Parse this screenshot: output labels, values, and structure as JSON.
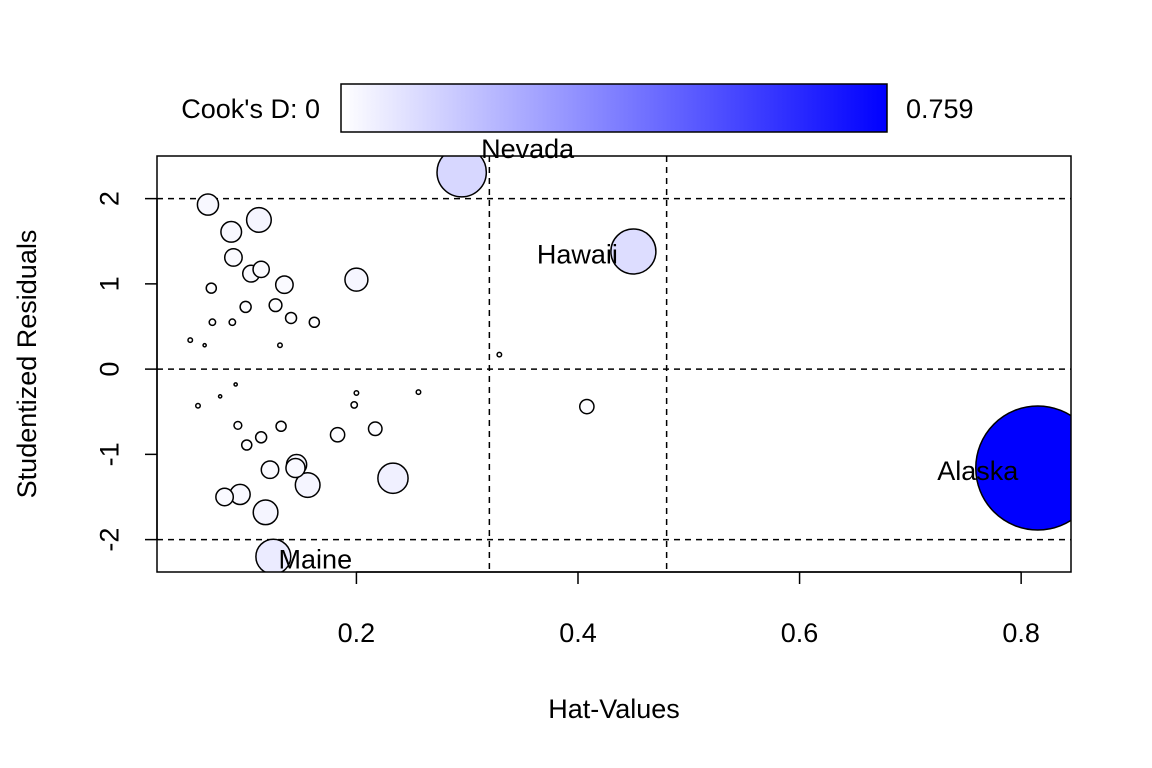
{
  "chart_data": {
    "type": "scatter",
    "title": "",
    "xlabel": "Hat-Values",
    "ylabel": "Studentized Residuals",
    "xlim": [
      0.02,
      0.845
    ],
    "ylim": [
      -2.38,
      2.5
    ],
    "x_ticks": [
      0.2,
      0.4,
      0.6,
      0.8
    ],
    "x_tick_labels": [
      "0.2",
      "0.4",
      "0.6",
      "0.8"
    ],
    "y_ticks": [
      -2,
      -1,
      0,
      1,
      2
    ],
    "y_tick_labels": [
      "-2",
      "-1",
      "0",
      "1",
      "2"
    ],
    "grid": false,
    "reference_lines": {
      "horizontal": [
        -2,
        0,
        2
      ],
      "vertical": [
        0.32,
        0.48
      ],
      "style": "dashed"
    },
    "legend": {
      "label": "Cook's D: 0",
      "max_label": "0.759",
      "min": 0,
      "max": 0.759,
      "color_low": "#ffffff",
      "color_high": "#0000ff",
      "placement": "top"
    },
    "points": [
      {
        "x": 0.066,
        "y": 1.93,
        "cooksd": 0.022
      },
      {
        "x": 0.112,
        "y": 1.75,
        "cooksd": 0.03
      },
      {
        "x": 0.087,
        "y": 1.61,
        "cooksd": 0.021
      },
      {
        "x": 0.089,
        "y": 1.31,
        "cooksd": 0.015
      },
      {
        "x": 0.105,
        "y": 1.12,
        "cooksd": 0.014
      },
      {
        "x": 0.114,
        "y": 1.17,
        "cooksd": 0.013
      },
      {
        "x": 0.069,
        "y": 0.95,
        "cooksd": 0.005
      },
      {
        "x": 0.135,
        "y": 0.99,
        "cooksd": 0.015
      },
      {
        "x": 0.2,
        "y": 1.05,
        "cooksd": 0.026
      },
      {
        "x": 0.1,
        "y": 0.73,
        "cooksd": 0.006
      },
      {
        "x": 0.127,
        "y": 0.75,
        "cooksd": 0.008
      },
      {
        "x": 0.141,
        "y": 0.6,
        "cooksd": 0.006
      },
      {
        "x": 0.162,
        "y": 0.55,
        "cooksd": 0.005
      },
      {
        "x": 0.07,
        "y": 0.55,
        "cooksd": 0.002
      },
      {
        "x": 0.088,
        "y": 0.55,
        "cooksd": 0.002
      },
      {
        "x": 0.05,
        "y": 0.34,
        "cooksd": 0.001
      },
      {
        "x": 0.063,
        "y": 0.28,
        "cooksd": 0.0005
      },
      {
        "x": 0.131,
        "y": 0.28,
        "cooksd": 0.001
      },
      {
        "x": 0.329,
        "y": 0.17,
        "cooksd": 0.001
      },
      {
        "x": 0.057,
        "y": -0.43,
        "cooksd": 0.001
      },
      {
        "x": 0.077,
        "y": -0.32,
        "cooksd": 0.0005
      },
      {
        "x": 0.091,
        "y": -0.18,
        "cooksd": 0.0005
      },
      {
        "x": 0.2,
        "y": -0.28,
        "cooksd": 0.001
      },
      {
        "x": 0.198,
        "y": -0.42,
        "cooksd": 0.002
      },
      {
        "x": 0.256,
        "y": -0.27,
        "cooksd": 0.001
      },
      {
        "x": 0.408,
        "y": -0.44,
        "cooksd": 0.01
      },
      {
        "x": 0.093,
        "y": -0.66,
        "cooksd": 0.003
      },
      {
        "x": 0.114,
        "y": -0.8,
        "cooksd": 0.006
      },
      {
        "x": 0.132,
        "y": -0.67,
        "cooksd": 0.005
      },
      {
        "x": 0.101,
        "y": -0.89,
        "cooksd": 0.005
      },
      {
        "x": 0.183,
        "y": -0.77,
        "cooksd": 0.01
      },
      {
        "x": 0.217,
        "y": -0.7,
        "cooksd": 0.009
      },
      {
        "x": 0.122,
        "y": -1.18,
        "cooksd": 0.015
      },
      {
        "x": 0.146,
        "y": -1.12,
        "cooksd": 0.02
      },
      {
        "x": 0.145,
        "y": -1.16,
        "cooksd": 0.018
      },
      {
        "x": 0.156,
        "y": -1.36,
        "cooksd": 0.03
      },
      {
        "x": 0.233,
        "y": -1.28,
        "cooksd": 0.045
      },
      {
        "x": 0.081,
        "y": -1.5,
        "cooksd": 0.015
      },
      {
        "x": 0.095,
        "y": -1.47,
        "cooksd": 0.02
      },
      {
        "x": 0.118,
        "y": -1.68,
        "cooksd": 0.03
      },
      {
        "x": 0.125,
        "y": -2.2,
        "cooksd": 0.06,
        "label": "Maine"
      },
      {
        "x": 0.295,
        "y": 2.31,
        "cooksd": 0.12,
        "label": "Nevada"
      },
      {
        "x": 0.45,
        "y": 1.38,
        "cooksd": 0.1,
        "label": "Hawaii"
      },
      {
        "x": 0.815,
        "y": -1.16,
        "cooksd": 0.759,
        "label": "Alaska"
      }
    ]
  }
}
